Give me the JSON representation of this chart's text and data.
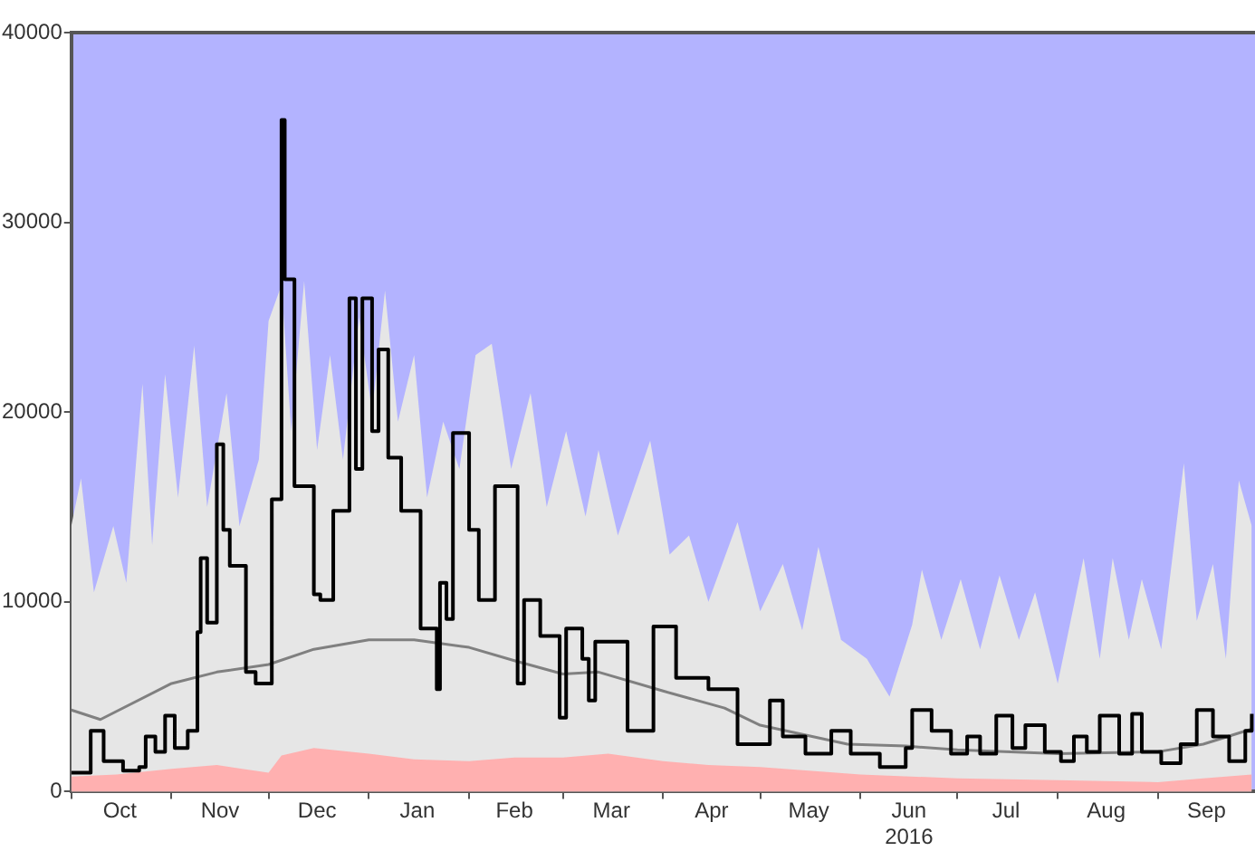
{
  "chart_data": {
    "type": "line",
    "xlim": [
      "2015-10-01",
      "2016-10-01"
    ],
    "ylim": [
      0,
      40000
    ],
    "yticks": [
      0,
      10000,
      20000,
      30000,
      40000
    ],
    "xticks": [
      {
        "value": "2015-10-01",
        "label": null
      },
      {
        "value": "2015-10-16",
        "label": "Oct"
      },
      {
        "value": "2015-11-01",
        "label": null
      },
      {
        "value": "2015-11-16",
        "label": "Nov"
      },
      {
        "value": "2015-12-01",
        "label": null
      },
      {
        "value": "2015-12-16",
        "label": "Dec"
      },
      {
        "value": "2016-01-01",
        "label": null
      },
      {
        "value": "2016-01-16",
        "label": "Jan"
      },
      {
        "value": "2016-02-01",
        "label": null
      },
      {
        "value": "2016-02-15",
        "label": "Feb"
      },
      {
        "value": "2016-03-01",
        "label": null
      },
      {
        "value": "2016-03-16",
        "label": "Mar"
      },
      {
        "value": "2016-04-01",
        "label": null
      },
      {
        "value": "2016-04-16",
        "label": "Apr"
      },
      {
        "value": "2016-05-01",
        "label": null
      },
      {
        "value": "2016-05-16",
        "label": "May"
      },
      {
        "value": "2016-06-01",
        "label": null
      },
      {
        "value": "2016-06-16",
        "label": "Jun\n2016"
      },
      {
        "value": "2016-07-01",
        "label": null
      },
      {
        "value": "2016-07-16",
        "label": "Jul"
      },
      {
        "value": "2016-08-01",
        "label": null
      },
      {
        "value": "2016-08-16",
        "label": "Aug"
      },
      {
        "value": "2016-09-01",
        "label": null
      },
      {
        "value": "2016-09-16",
        "label": "Sep"
      }
    ],
    "grid": false,
    "legend": false,
    "bands": [
      {
        "axis": "y",
        "from": 0,
        "to": 40000,
        "color": "#b3b3ff"
      }
    ],
    "series": [
      {
        "type": "area",
        "color": "#e6e6e6",
        "x": [
          "2015-10-01",
          "2015-10-04",
          "2015-10-08",
          "2015-10-14",
          "2015-10-18",
          "2015-10-23",
          "2015-10-26",
          "2015-10-30",
          "2015-11-03",
          "2015-11-08",
          "2015-11-12",
          "2015-11-18",
          "2015-11-22",
          "2015-11-28",
          "2015-12-01",
          "2015-12-05",
          "2015-12-08",
          "2015-12-12",
          "2015-12-16",
          "2015-12-20",
          "2015-12-24",
          "2015-12-29",
          "2016-01-02",
          "2016-01-06",
          "2016-01-10",
          "2016-01-15",
          "2016-01-19",
          "2016-01-24",
          "2016-01-29",
          "2016-02-03",
          "2016-02-08",
          "2016-02-14",
          "2016-02-20",
          "2016-02-25",
          "2016-03-02",
          "2016-03-08",
          "2016-03-12",
          "2016-03-18",
          "2016-03-28",
          "2016-04-03",
          "2016-04-09",
          "2016-04-15",
          "2016-04-24",
          "2016-05-01",
          "2016-05-08",
          "2016-05-14",
          "2016-05-19",
          "2016-05-26",
          "2016-06-03",
          "2016-06-10",
          "2016-06-17",
          "2016-06-20",
          "2016-06-26",
          "2016-07-02",
          "2016-07-08",
          "2016-07-14",
          "2016-07-20",
          "2016-07-25",
          "2016-08-01",
          "2016-08-09",
          "2016-08-14",
          "2016-08-18",
          "2016-08-23",
          "2016-08-27",
          "2016-09-02",
          "2016-09-09",
          "2016-09-13",
          "2016-09-18",
          "2016-09-22",
          "2016-09-26",
          "2016-09-30"
        ],
        "values": [
          14000,
          16500,
          10500,
          14000,
          11000,
          21500,
          13000,
          22000,
          15500,
          23500,
          15000,
          21000,
          14000,
          17500,
          24800,
          26700,
          19000,
          26900,
          18000,
          23000,
          17500,
          25000,
          20000,
          26400,
          19500,
          23000,
          15500,
          19500,
          17000,
          23000,
          23600,
          17000,
          21000,
          15000,
          19000,
          14500,
          18000,
          13500,
          18500,
          12500,
          13500,
          10000,
          14200,
          9500,
          12000,
          8500,
          12900,
          8000,
          7000,
          5000,
          8800,
          11700,
          8000,
          11200,
          7500,
          11400,
          8000,
          10500,
          5700,
          12300,
          7000,
          12300,
          8000,
          11200,
          7500,
          17300,
          9000,
          12000,
          7000,
          16400,
          14000
        ]
      },
      {
        "type": "area",
        "color": "#ffb0b0",
        "x": [
          "2015-10-01",
          "2015-10-15",
          "2015-11-01",
          "2015-11-15",
          "2015-12-01",
          "2015-12-05",
          "2015-12-15",
          "2016-01-01",
          "2016-01-15",
          "2016-02-01",
          "2016-02-15",
          "2016-03-01",
          "2016-03-15",
          "2016-04-01",
          "2016-04-15",
          "2016-05-01",
          "2016-06-01",
          "2016-07-01",
          "2016-08-01",
          "2016-09-01",
          "2016-09-15",
          "2016-09-30"
        ],
        "values": [
          800,
          900,
          1200,
          1400,
          1000,
          1900,
          2300,
          2000,
          1700,
          1600,
          1800,
          1800,
          2000,
          1600,
          1400,
          1300,
          900,
          700,
          600,
          500,
          700,
          900
        ]
      },
      {
        "type": "line",
        "color": "#808080",
        "x": [
          "2015-10-01",
          "2015-10-10",
          "2015-11-01",
          "2015-11-15",
          "2015-12-01",
          "2015-12-15",
          "2016-01-01",
          "2016-01-15",
          "2016-02-01",
          "2016-02-15",
          "2016-03-01",
          "2016-03-12",
          "2016-04-01",
          "2016-04-20",
          "2016-05-01",
          "2016-05-28",
          "2016-06-15",
          "2016-07-01",
          "2016-08-01",
          "2016-09-01",
          "2016-09-15",
          "2016-09-30"
        ],
        "values": [
          4300,
          3800,
          5700,
          6300,
          6700,
          7500,
          8000,
          8000,
          7600,
          6900,
          6200,
          6300,
          5300,
          4400,
          3500,
          2500,
          2400,
          2200,
          2000,
          2100,
          2500,
          3300
        ]
      },
      {
        "type": "step",
        "color": "#000000",
        "x": [
          "2015-10-01",
          "2015-10-07",
          "2015-10-11",
          "2015-10-17",
          "2015-10-22",
          "2015-10-24",
          "2015-10-27",
          "2015-10-30",
          "2015-11-02",
          "2015-11-06",
          "2015-11-09",
          "2015-11-10",
          "2015-11-12",
          "2015-11-15",
          "2015-11-17",
          "2015-11-19",
          "2015-11-24",
          "2015-11-27",
          "2015-12-02",
          "2015-12-05",
          "2015-12-06",
          "2015-12-09",
          "2015-12-15",
          "2015-12-17",
          "2015-12-21",
          "2015-12-26",
          "2015-12-28",
          "2015-12-30",
          "2016-01-02",
          "2016-01-04",
          "2016-01-07",
          "2016-01-11",
          "2016-01-17",
          "2016-01-22",
          "2016-01-23",
          "2016-01-25",
          "2016-01-27",
          "2016-02-01",
          "2016-02-04",
          "2016-02-09",
          "2016-02-16",
          "2016-02-18",
          "2016-02-23",
          "2016-02-29",
          "2016-03-02",
          "2016-03-07",
          "2016-03-09",
          "2016-03-11",
          "2016-03-21",
          "2016-03-27",
          "2016-03-29",
          "2016-04-05",
          "2016-04-15",
          "2016-04-24",
          "2016-05-04",
          "2016-05-08",
          "2016-05-15",
          "2016-05-23",
          "2016-05-29",
          "2016-06-07",
          "2016-06-15",
          "2016-06-17",
          "2016-06-23",
          "2016-06-29",
          "2016-07-04",
          "2016-07-08",
          "2016-07-13",
          "2016-07-18",
          "2016-07-22",
          "2016-07-28",
          "2016-08-02",
          "2016-08-06",
          "2016-08-10",
          "2016-08-14",
          "2016-08-20",
          "2016-08-24",
          "2016-08-27",
          "2016-09-02",
          "2016-09-08",
          "2016-09-13",
          "2016-09-18",
          "2016-09-23",
          "2016-09-28",
          "2016-09-30"
        ],
        "values": [
          1000,
          3200,
          1600,
          1100,
          1300,
          2900,
          2100,
          4000,
          2300,
          3200,
          8400,
          12300,
          8900,
          18300,
          13800,
          11900,
          6300,
          5700,
          15400,
          35400,
          27000,
          16100,
          10400,
          10100,
          14800,
          26000,
          17000,
          26000,
          19000,
          23300,
          17600,
          14800,
          8600,
          5400,
          11000,
          9100,
          18900,
          13800,
          10100,
          16100,
          5700,
          10100,
          8200,
          3900,
          8600,
          7000,
          4800,
          7900,
          3200,
          3200,
          8700,
          6000,
          5400,
          2500,
          4800,
          2900,
          2000,
          3200,
          2000,
          1300,
          2300,
          4300,
          3200,
          2000,
          2900,
          2000,
          4000,
          2300,
          3500,
          2100,
          1600,
          2900,
          2100,
          4000,
          2000,
          4100,
          2100,
          1500,
          2500,
          4300,
          2900,
          1600,
          3200,
          4100
        ]
      }
    ]
  }
}
